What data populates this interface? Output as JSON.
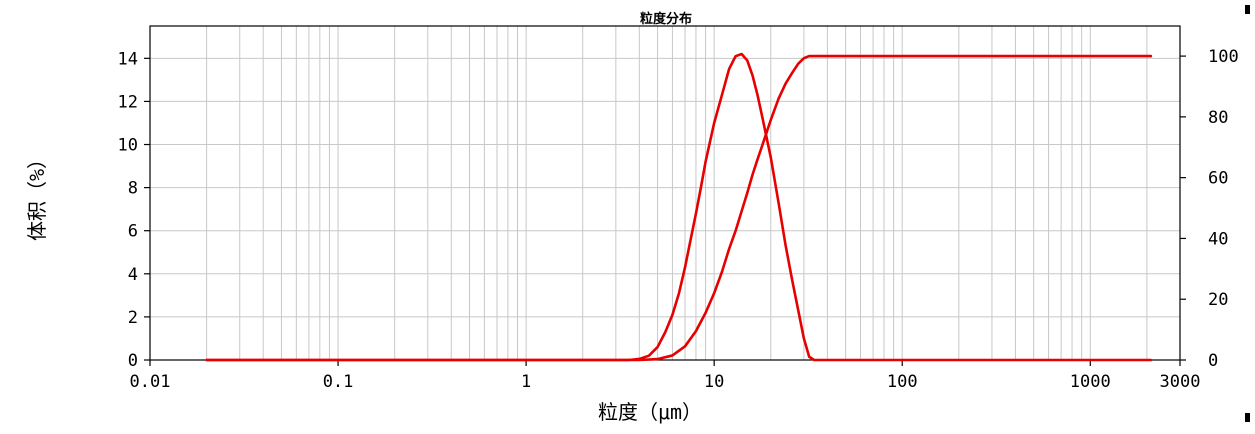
{
  "chart_data": {
    "type": "line",
    "title": "粒度分布",
    "xlabel": "粒度（μm）",
    "ylabel": "体积（%）",
    "x_scale": "log",
    "xlim": [
      0.01,
      3000
    ],
    "ylim": [
      0,
      15.5
    ],
    "ylim_right": [
      0,
      109.9
    ],
    "grid": true,
    "x_ticks": [
      {
        "value": 0.01,
        "label": "0.01"
      },
      {
        "value": 0.1,
        "label": "0.1"
      },
      {
        "value": 1,
        "label": "1"
      },
      {
        "value": 10,
        "label": "10"
      },
      {
        "value": 100,
        "label": "100"
      },
      {
        "value": 1000,
        "label": "1000"
      },
      {
        "value": 3000,
        "label": "3000"
      }
    ],
    "y_ticks": [
      {
        "value": 0,
        "label": "0"
      },
      {
        "value": 2,
        "label": "2"
      },
      {
        "value": 4,
        "label": "4"
      },
      {
        "value": 6,
        "label": "6"
      },
      {
        "value": 8,
        "label": "8"
      },
      {
        "value": 10,
        "label": "10"
      },
      {
        "value": 12,
        "label": "12"
      },
      {
        "value": 14,
        "label": "14"
      }
    ],
    "y_right_ticks": [
      {
        "value": 0,
        "label": "0"
      },
      {
        "value": 20,
        "label": "20"
      },
      {
        "value": 40,
        "label": "40"
      },
      {
        "value": 60,
        "label": "60"
      },
      {
        "value": 80,
        "label": "80"
      },
      {
        "value": 100,
        "label": "100"
      }
    ],
    "series": [
      {
        "color": "#e60000",
        "axis": "left",
        "points": [
          [
            0.02,
            0.0
          ],
          [
            0.1,
            0.0
          ],
          [
            1,
            0.0
          ],
          [
            3.5,
            0.0
          ],
          [
            4.0,
            0.05
          ],
          [
            4.5,
            0.2
          ],
          [
            5.0,
            0.6
          ],
          [
            5.5,
            1.3
          ],
          [
            6.0,
            2.1
          ],
          [
            6.5,
            3.1
          ],
          [
            7.0,
            4.3
          ],
          [
            7.5,
            5.6
          ],
          [
            8.0,
            6.8
          ],
          [
            8.5,
            8.0
          ],
          [
            9.0,
            9.2
          ],
          [
            10.0,
            11.0
          ],
          [
            11.0,
            12.3
          ],
          [
            12.0,
            13.5
          ],
          [
            13.0,
            14.1
          ],
          [
            14.0,
            14.2
          ],
          [
            15.0,
            13.9
          ],
          [
            16.0,
            13.2
          ],
          [
            17.0,
            12.3
          ],
          [
            18.0,
            11.3
          ],
          [
            20.0,
            9.4
          ],
          [
            22.0,
            7.3
          ],
          [
            24.0,
            5.3
          ],
          [
            26.0,
            3.7
          ],
          [
            28.0,
            2.3
          ],
          [
            30.0,
            1.0
          ],
          [
            32.0,
            0.15
          ],
          [
            34.0,
            0.0
          ],
          [
            100,
            0.0
          ],
          [
            1000,
            0.0
          ],
          [
            2100,
            0.0
          ]
        ]
      },
      {
        "color": "#e60000",
        "axis": "right",
        "points": [
          [
            0.02,
            0.0
          ],
          [
            1,
            0.0
          ],
          [
            4.0,
            0.0
          ],
          [
            5.0,
            0.3
          ],
          [
            6.0,
            1.5
          ],
          [
            7.0,
            4.5
          ],
          [
            8.0,
            9.5
          ],
          [
            9.0,
            15.5
          ],
          [
            10.0,
            22.0
          ],
          [
            11.0,
            29.0
          ],
          [
            12.0,
            36.5
          ],
          [
            13.0,
            42.5
          ],
          [
            14.0,
            49.0
          ],
          [
            15.0,
            55.0
          ],
          [
            16.0,
            61.0
          ],
          [
            17.0,
            66.0
          ],
          [
            18.0,
            70.5
          ],
          [
            20.0,
            79.0
          ],
          [
            22.0,
            86.0
          ],
          [
            24.0,
            91.0
          ],
          [
            26.0,
            94.5
          ],
          [
            28.0,
            97.5
          ],
          [
            30.0,
            99.3
          ],
          [
            32.0,
            100.0
          ],
          [
            100,
            100.0
          ],
          [
            1000,
            100.0
          ],
          [
            2100,
            100.0
          ]
        ]
      }
    ]
  }
}
